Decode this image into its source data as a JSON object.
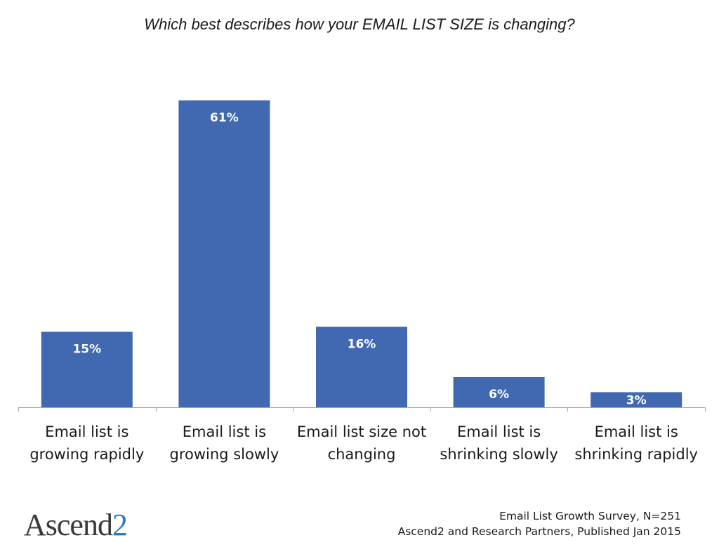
{
  "chart_data": {
    "type": "bar",
    "title": "Which best describes how your EMAIL LIST SIZE is changing?",
    "categories": [
      [
        "Email list is",
        "growing rapidly"
      ],
      [
        "Email list is",
        "growing slowly"
      ],
      [
        "Email list size not",
        "changing"
      ],
      [
        "Email list is",
        "shrinking slowly"
      ],
      [
        "Email list is",
        "shrinking rapidly"
      ]
    ],
    "values": [
      15,
      61,
      16,
      6,
      3
    ],
    "data_labels": [
      "15%",
      "61%",
      "16%",
      "6%",
      "3%"
    ],
    "ylim": [
      0,
      61
    ],
    "grid": false,
    "legend": "none",
    "bar_color": "#4169B1",
    "axis_color": "#a6a6a6"
  },
  "logo": {
    "text_main": "Ascend",
    "text_accent": "2",
    "accent_color": "#2a7ac0"
  },
  "source": {
    "line1": "Email List Growth Survey, N=251",
    "line2": "Ascend2 and Research Partners, Published Jan 2015"
  }
}
